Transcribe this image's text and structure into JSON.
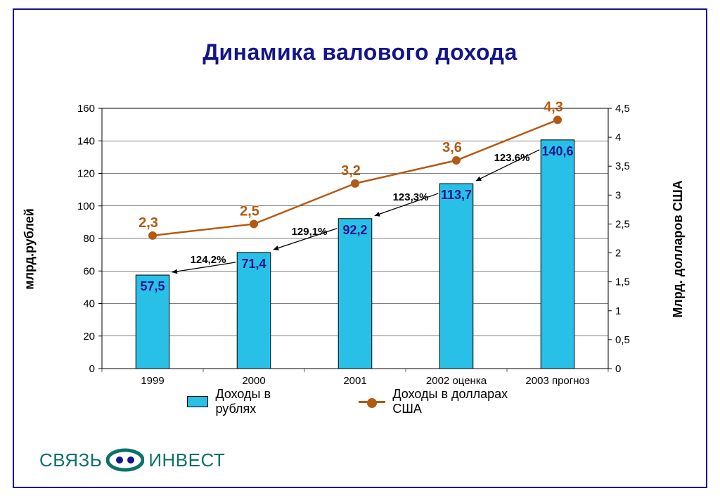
{
  "title": "Динамика валового дохода",
  "title_color": "#14148c",
  "border_color": "#14148c",
  "chart": {
    "type": "bar+line",
    "plot_background": "#ffffff",
    "grid_color": "#000000",
    "categories": [
      "1999",
      "2000",
      "2001",
      "2002 оценка",
      "2003 прогноз"
    ],
    "y_left": {
      "title": "млрд.рублей",
      "min": 0,
      "max": 160,
      "step": 20,
      "tick_labels": [
        "0",
        "20",
        "40",
        "60",
        "80",
        "100",
        "120",
        "140",
        "160"
      ]
    },
    "y_right": {
      "title": "Млрд. долларов США",
      "min": 0,
      "max": 4.5,
      "step": 0.5,
      "tick_labels": [
        "0",
        "0,5",
        "1",
        "1,5",
        "2",
        "2,5",
        "3",
        "3,5",
        "4",
        "4,5"
      ]
    },
    "bars": {
      "label": "Доходы в рублях",
      "values": [
        57.5,
        71.4,
        92.2,
        113.7,
        140.6
      ],
      "value_labels": [
        "57,5",
        "71,4",
        "92,2",
        "113,7",
        "140,6"
      ],
      "color": "#29c0e7",
      "border_color": "#000000",
      "bar_width_frac": 0.33,
      "label_color": "#14148c"
    },
    "line": {
      "label": "Доходы в долларах США",
      "values": [
        2.3,
        2.5,
        3.2,
        3.6,
        4.3
      ],
      "value_labels": [
        "2,3",
        "2,5",
        "3,2",
        "3,6",
        "4,3"
      ],
      "color": "#b25a12",
      "marker_color": "#b25a12",
      "marker_radius": 5,
      "line_width": 2.5,
      "label_color": "#b25a12"
    },
    "growth_arrows": {
      "labels": [
        "124,2%",
        "129,1%",
        "123,3%",
        "123.6%"
      ],
      "label_color": "#000000"
    },
    "axis_font_size": 15,
    "title_font_size": 32
  },
  "legend": {
    "bar_text": "Доходы в рублях",
    "line_text": "Доходы в долларах США"
  },
  "logo": {
    "left_text": "СВЯЗЬ",
    "right_text": "ИНВЕСТ",
    "text_color": "#0b7268",
    "icon_outer": "#0b7268",
    "icon_inner": "#14148c"
  }
}
